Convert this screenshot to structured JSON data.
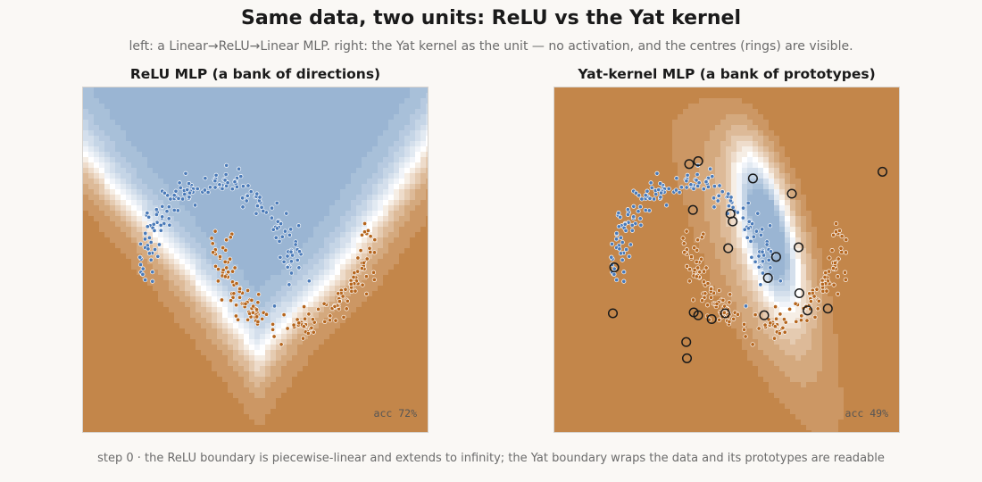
{
  "header": {
    "title": "Same data, two units: ReLU vs the Yat kernel",
    "subtitle": "left: a Linear→ReLU→Linear MLP.   right: the Yat kernel as the unit — no activation, and the centres (rings) are visible."
  },
  "caption": "step 0 · the ReLU boundary is piecewise-linear and extends to infinity; the Yat boundary wraps the data and its prototypes are readable",
  "colors": {
    "class_a": "#4a7ab8",
    "class_b": "#b5651d",
    "field_orange": "#c3864a",
    "field_blue": "#9ab5d3",
    "boundary": "#ffffff"
  },
  "chart_data": [
    {
      "type": "scatter",
      "title": "ReLU MLP  (a bank of directions)",
      "accuracy_label": "acc  72%",
      "accuracy": 0.72,
      "xlim": [
        -1.8,
        2.8
      ],
      "ylim": [
        -1.6,
        2.0
      ],
      "grid": false,
      "series": [
        {
          "class": "a",
          "shape": "upper-moon",
          "center": [
            0,
            0
          ],
          "radius": 1,
          "points": 170
        },
        {
          "class": "b",
          "shape": "lower-moon",
          "center": [
            1,
            0.5
          ],
          "radius": 1,
          "points": 170
        }
      ],
      "field": "relu"
    },
    {
      "type": "scatter",
      "title": "Yat-kernel MLP  (a bank of prototypes)",
      "accuracy_label": "acc  49%",
      "accuracy": 0.49,
      "xlim": [
        -1.8,
        2.8
      ],
      "ylim": [
        -1.6,
        2.0
      ],
      "grid": false,
      "series": [
        {
          "class": "a",
          "shape": "upper-moon",
          "center": [
            0,
            0
          ],
          "radius": 1,
          "points": 170
        },
        {
          "class": "b",
          "shape": "lower-moon",
          "center": [
            1,
            0.5
          ],
          "radius": 1,
          "points": 170
        }
      ],
      "prototypes": [
        [
          -0.0,
          1.2
        ],
        [
          0.12,
          1.23
        ],
        [
          0.05,
          0.72
        ],
        [
          0.58,
          0.6
        ],
        [
          0.55,
          0.68
        ],
        [
          0.52,
          0.32
        ],
        [
          0.85,
          1.05
        ],
        [
          1.37,
          0.89
        ],
        [
          1.16,
          0.23
        ],
        [
          1.46,
          0.33
        ],
        [
          1.05,
          0.01
        ],
        [
          1.47,
          -0.15
        ],
        [
          1.58,
          -0.33
        ],
        [
          1.85,
          -0.31
        ],
        [
          2.58,
          1.12
        ],
        [
          -1.0,
          0.12
        ],
        [
          -1.02,
          -0.36
        ],
        [
          -0.04,
          -0.66
        ],
        [
          -0.03,
          -0.83
        ],
        [
          0.06,
          -0.35
        ],
        [
          0.12,
          -0.38
        ],
        [
          0.3,
          -0.42
        ],
        [
          0.48,
          -0.36
        ],
        [
          1.0,
          -0.38
        ]
      ],
      "field": "yat"
    }
  ]
}
